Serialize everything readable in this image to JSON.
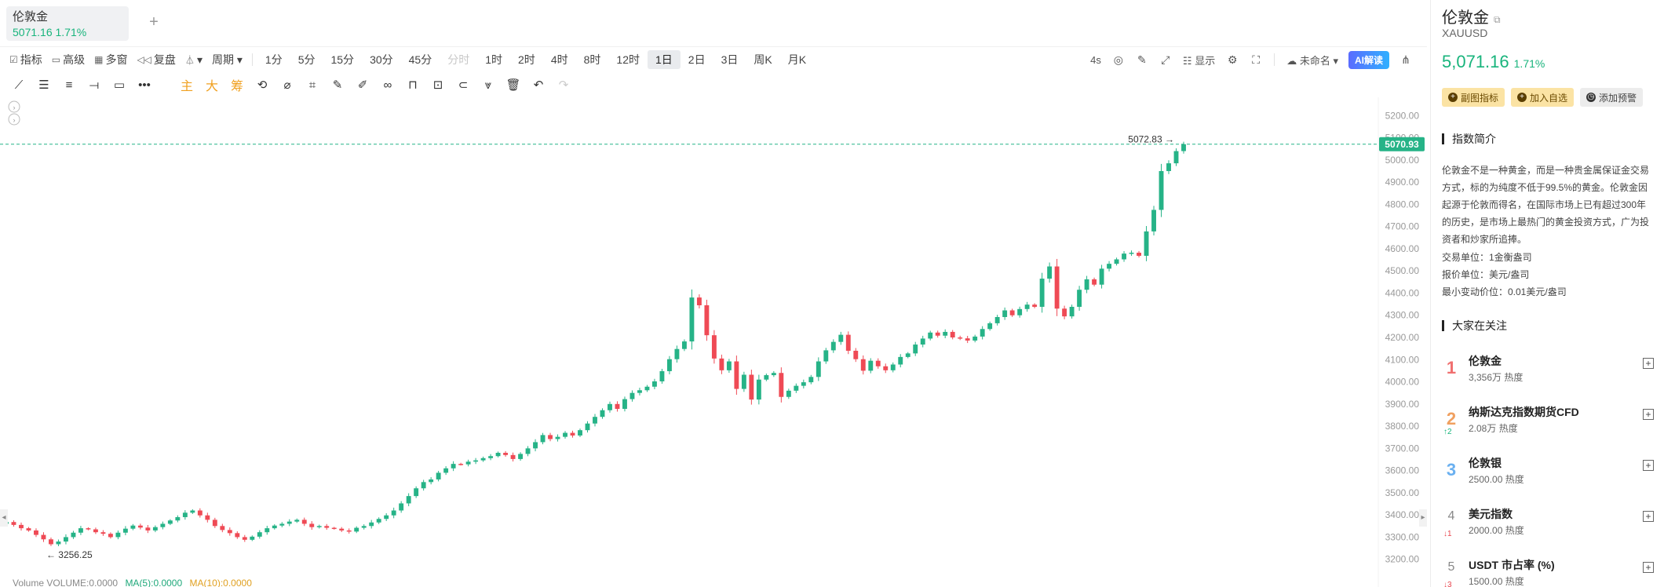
{
  "tab": {
    "name": "伦敦金",
    "price": "5071.16",
    "change": "1.71%",
    "add": "+"
  },
  "toolbar": {
    "left_items": [
      {
        "icon": "indicator-icon",
        "glyph": "☑",
        "label": "指标"
      },
      {
        "icon": "advanced-icon",
        "glyph": "▭",
        "label": "高级"
      },
      {
        "icon": "multi-window-icon",
        "glyph": "▦",
        "label": "多窗"
      },
      {
        "icon": "replay-icon",
        "glyph": "◁◁",
        "label": "复盘"
      },
      {
        "icon": "chart-type-icon",
        "glyph": "⏃",
        "label": ""
      },
      {
        "icon": "",
        "glyph": "",
        "label": "周期"
      }
    ],
    "periods": [
      {
        "label": "1分",
        "state": "normal"
      },
      {
        "label": "5分",
        "state": "normal"
      },
      {
        "label": "15分",
        "state": "normal"
      },
      {
        "label": "30分",
        "state": "normal"
      },
      {
        "label": "45分",
        "state": "normal"
      },
      {
        "label": "分时",
        "state": "disabled"
      },
      {
        "label": "1时",
        "state": "normal"
      },
      {
        "label": "2时",
        "state": "normal"
      },
      {
        "label": "4时",
        "state": "normal"
      },
      {
        "label": "8时",
        "state": "normal"
      },
      {
        "label": "12时",
        "state": "normal"
      },
      {
        "label": "1日",
        "state": "active"
      },
      {
        "label": "2日",
        "state": "normal"
      },
      {
        "label": "3日",
        "state": "normal"
      },
      {
        "label": "周K",
        "state": "normal"
      },
      {
        "label": "月K",
        "state": "normal"
      }
    ],
    "right": {
      "interval": "4s",
      "display_label": "显示",
      "layout_name": "未命名",
      "ai_label": "AI解读"
    }
  },
  "drawbar": {
    "tools": [
      {
        "name": "trend-line-icon",
        "glyph": "⟋"
      },
      {
        "name": "parallel-lines-icon",
        "glyph": "☰"
      },
      {
        "name": "channel-icon",
        "glyph": "≡"
      },
      {
        "name": "horizontal-line-icon",
        "glyph": "⟞"
      },
      {
        "name": "rectangle-icon",
        "glyph": "▭"
      },
      {
        "name": "more-tools-icon",
        "glyph": "•••"
      }
    ],
    "overlay_labels": [
      "主",
      "大",
      "筹"
    ],
    "tools2": [
      {
        "name": "sync-icon",
        "glyph": "⟲"
      },
      {
        "name": "erase-drawing-icon",
        "glyph": "⌀"
      },
      {
        "name": "crop-icon",
        "glyph": "⌗"
      },
      {
        "name": "ruler-icon",
        "glyph": "✎"
      },
      {
        "name": "pen-icon",
        "glyph": "✐"
      },
      {
        "name": "link-icon",
        "glyph": "∞"
      },
      {
        "name": "lock-icon",
        "glyph": "⊓"
      },
      {
        "name": "visibility-icon",
        "glyph": "⊡"
      },
      {
        "name": "magnet-icon",
        "glyph": "⊂"
      },
      {
        "name": "filter-icon",
        "glyph": "⩔"
      },
      {
        "name": "trash-icon",
        "glyph": "🗑"
      },
      {
        "name": "undo-icon",
        "glyph": "↶"
      },
      {
        "name": "redo-icon",
        "glyph": "↷"
      }
    ]
  },
  "chart_data": {
    "type": "candlestick",
    "symbol": "XAUUSD",
    "period": "1日",
    "ylim": [
      3160,
      5240
    ],
    "yticks": [
      "5200.00",
      "5100.00",
      "5000.00",
      "4900.00",
      "4800.00",
      "4700.00",
      "4600.00",
      "4500.00",
      "4400.00",
      "4300.00",
      "4200.00",
      "4100.00",
      "4000.00",
      "3900.00",
      "3800.00",
      "3700.00",
      "3600.00",
      "3500.00",
      "3400.00",
      "3300.00",
      "3200.00"
    ],
    "last_price": "5070.93",
    "high_label": "5072.83",
    "low_label": "3256.25",
    "up_color": "#26b387",
    "down_color": "#ef4a55",
    "closes": [
      3368,
      3355,
      3340,
      3330,
      3310,
      3290,
      3268,
      3280,
      3300,
      3320,
      3340,
      3335,
      3322,
      3315,
      3300,
      3320,
      3338,
      3352,
      3343,
      3330,
      3345,
      3360,
      3375,
      3390,
      3410,
      3420,
      3398,
      3378,
      3350,
      3332,
      3318,
      3300,
      3288,
      3302,
      3322,
      3340,
      3352,
      3360,
      3370,
      3378,
      3360,
      3345,
      3350,
      3342,
      3338,
      3330,
      3325,
      3342,
      3350,
      3366,
      3382,
      3398,
      3420,
      3452,
      3485,
      3520,
      3548,
      3560,
      3590,
      3610,
      3630,
      3628,
      3640,
      3646,
      3656,
      3665,
      3680,
      3670,
      3652,
      3675,
      3700,
      3728,
      3760,
      3742,
      3752,
      3770,
      3758,
      3782,
      3812,
      3842,
      3872,
      3900,
      3878,
      3922,
      3950,
      3962,
      3978,
      4002,
      4048,
      4102,
      4148,
      4182,
      4380,
      4345,
      4210,
      4105,
      4052,
      4092,
      3968,
      4032,
      3920,
      4010,
      4030,
      4040,
      3932,
      3960,
      3982,
      3998,
      4022,
      4092,
      4142,
      4180,
      4212,
      4140,
      4102,
      4050,
      4095,
      4070,
      4052,
      4078,
      4112,
      4128,
      4168,
      4195,
      4222,
      4208,
      4225,
      4200,
      4196,
      4186,
      4204,
      4238,
      4264,
      4292,
      4322,
      4300,
      4328,
      4348,
      4338,
      4465,
      4520,
      4330,
      4295,
      4338,
      4415,
      4462,
      4438,
      4510,
      4532,
      4552,
      4578,
      4582,
      4568,
      4678,
      4775,
      4950,
      4985,
      5040,
      5070.93
    ],
    "volume_legend": {
      "label": "Volume",
      "volume": "VOLUME:0.0000",
      "ma5": "MA(5):0.0000",
      "ma10": "MA(10):0.0000"
    }
  },
  "panel": {
    "title": "伦敦金",
    "code": "XAUUSD",
    "price": "5,071.16",
    "change": "1.71%",
    "buttons": [
      {
        "name": "sub-chart-indicator-button",
        "label": "副图指标",
        "style": "y",
        "icon": "+"
      },
      {
        "name": "add-watchlist-button",
        "label": "加入自选",
        "style": "y",
        "icon": "+"
      },
      {
        "name": "add-alert-button",
        "label": "添加预警",
        "style": "g",
        "icon": "◷"
      }
    ],
    "intro_title": "指数简介",
    "intro": "伦敦金不是一种黄金，而是一种贵金属保证金交易方式，标的为纯度不低于99.5%的黄金。伦敦金因起源于伦敦而得名，在国际市场上已有超过300年的历史，是市场上最热门的黄金投资方式，广为投资者和炒家所追捧。",
    "info": [
      "交易单位：1金衡盎司",
      "报价单位：美元/盎司",
      "最小变动价位：0.01美元/盎司"
    ],
    "hot_title": "大家在关注",
    "hot": [
      {
        "rank": "1",
        "cls": "r1",
        "delta": "",
        "dir": "",
        "name": "伦敦金",
        "value": "3,356万",
        "unit": "热度"
      },
      {
        "rank": "2",
        "cls": "r2",
        "delta": "↑2",
        "dir": "up",
        "name": "纳斯达克指数期货CFD",
        "value": "2.08万",
        "unit": "热度"
      },
      {
        "rank": "3",
        "cls": "r3",
        "delta": "",
        "dir": "",
        "name": "伦敦银",
        "value": "2500.00",
        "unit": "热度"
      },
      {
        "rank": "4",
        "cls": "rn",
        "delta": "↓1",
        "dir": "dn",
        "name": "美元指数",
        "value": "2000.00",
        "unit": "热度"
      },
      {
        "rank": "5",
        "cls": "rn",
        "delta": "↓3",
        "dir": "dn",
        "name": "USDT 市占率 (%)",
        "value": "1500.00",
        "unit": "热度"
      }
    ]
  }
}
